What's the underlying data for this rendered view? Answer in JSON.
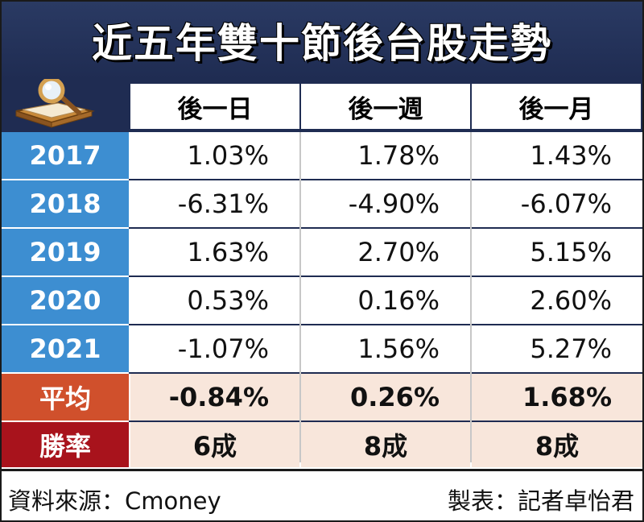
{
  "title": "近五年雙十節後台股走勢",
  "chart_data": {
    "type": "table",
    "columns": [
      "後一日",
      "後一週",
      "後一月"
    ],
    "rows": [
      {
        "label": "2017",
        "values": [
          "1.03%",
          "1.78%",
          "1.43%"
        ]
      },
      {
        "label": "2018",
        "values": [
          "-6.31%",
          "-4.90%",
          "-6.07%"
        ]
      },
      {
        "label": "2019",
        "values": [
          "1.63%",
          "2.70%",
          "5.15%"
        ]
      },
      {
        "label": "2020",
        "values": [
          "0.53%",
          "0.16%",
          "2.60%"
        ]
      },
      {
        "label": "2021",
        "values": [
          "-1.07%",
          "1.56%",
          "5.27%"
        ]
      }
    ],
    "summary": [
      {
        "label": "平均",
        "values": [
          "-0.84%",
          "0.26%",
          "1.68%"
        ]
      },
      {
        "label": "勝率",
        "values": [
          "6成",
          "8成",
          "8成"
        ]
      }
    ]
  },
  "footer": {
    "source": "資料來源：Cmoney",
    "credit": "製表：記者卓怡君"
  },
  "colors": {
    "title_bg": "#1f2c52",
    "year_cell": "#3d8ed1",
    "avg_cell": "#d0502c",
    "win_cell": "#a8131c",
    "summary_bg": "#f8e6db"
  },
  "icons": [
    "magnifier-book-icon"
  ]
}
